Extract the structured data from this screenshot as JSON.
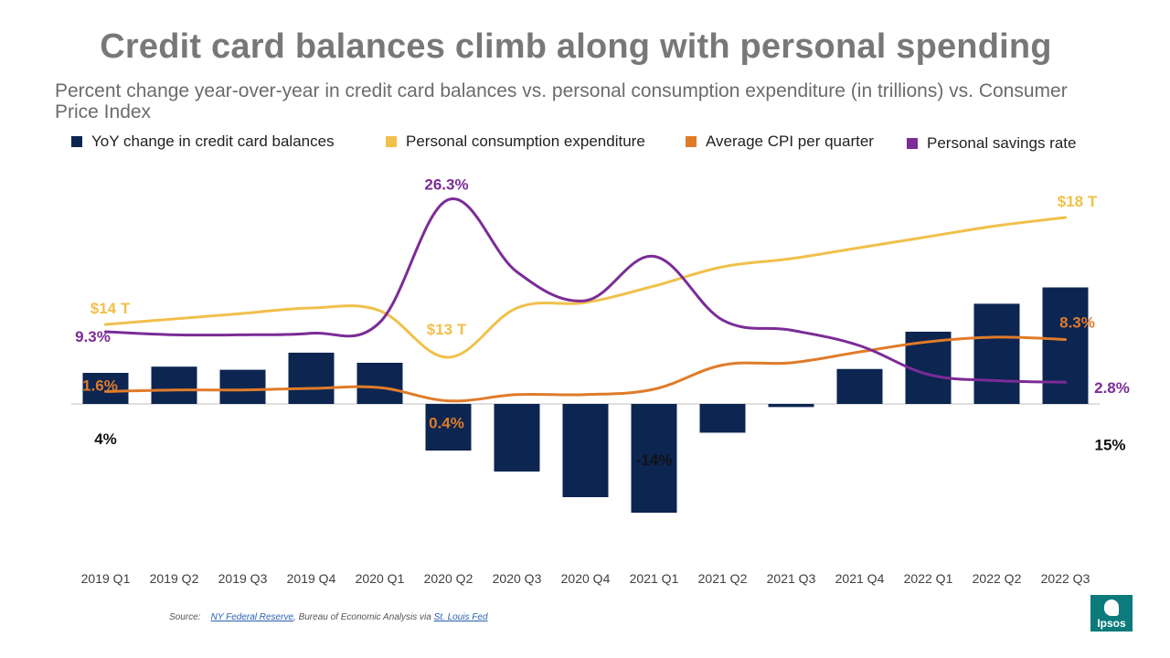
{
  "title": "Credit card balances climb along with personal spending",
  "subtitle": "Percent change year-over-year in credit card balances vs. personal consumption expenditure (in trillions) vs. Consumer Price Index",
  "source": {
    "prefix": "Source:",
    "link1": "NY Federal Reserve",
    "middle": ", Bureau of Economic Analysis via",
    "link2": "St. Louis Fed"
  },
  "logo_text": "Ipsos",
  "colors": {
    "bars": "#0c2551",
    "pce": "#f0c04a",
    "cpi": "#e07b29",
    "savings": "#7b2c97",
    "axis": "#bfbfbf"
  },
  "legend": [
    {
      "label": "YoY change in credit card balances",
      "color": "#0c2551"
    },
    {
      "label": "Personal consumption expenditure",
      "color": "#f0c04a"
    },
    {
      "label": "Average CPI per quarter",
      "color": "#e07b29"
    },
    {
      "label": "Personal savings rate",
      "color": "#7b2c97"
    }
  ],
  "chart_data": {
    "type": "bar",
    "categories": [
      "2019 Q1",
      "2019 Q2",
      "2019 Q3",
      "2019 Q4",
      "2020 Q1",
      "2020 Q2",
      "2020 Q3",
      "2020 Q4",
      "2021 Q1",
      "2021 Q2",
      "2021 Q3",
      "2021 Q4",
      "2022 Q1",
      "2022 Q2",
      "2022 Q3"
    ],
    "series": [
      {
        "name": "YoY change in credit card balances",
        "type": "bar",
        "values": [
          4,
          4.8,
          4.4,
          6.6,
          5.3,
          -6,
          -8.7,
          -12,
          -14,
          -3.7,
          -0.4,
          4.5,
          9.3,
          12.9,
          15
        ]
      },
      {
        "name": "Personal consumption expenditure",
        "type": "line",
        "values": [
          14.1,
          14.3,
          14.5,
          14.7,
          14.6,
          12.9,
          14.7,
          14.9,
          15.5,
          16.2,
          16.5,
          16.9,
          17.3,
          17.7,
          18.0
        ]
      },
      {
        "name": "Average CPI per quarter",
        "type": "line",
        "values": [
          1.6,
          1.8,
          1.8,
          2.0,
          2.1,
          0.4,
          1.2,
          1.2,
          1.9,
          5.0,
          5.3,
          6.7,
          8.0,
          8.6,
          8.3
        ]
      },
      {
        "name": "Personal savings rate",
        "type": "line",
        "values": [
          9.3,
          8.9,
          8.9,
          9.1,
          10.5,
          26.3,
          17.0,
          13.3,
          19.0,
          10.8,
          9.5,
          7.5,
          3.8,
          3.0,
          2.8
        ]
      }
    ],
    "data_labels": [
      {
        "series": "YoY change in credit card balances",
        "category": "2019 Q1",
        "text": "4%"
      },
      {
        "series": "YoY change in credit card balances",
        "category": "2021 Q1",
        "text": "-14%"
      },
      {
        "series": "YoY change in credit card balances",
        "category": "2022 Q3",
        "text": "15%"
      },
      {
        "series": "Personal consumption expenditure",
        "category": "2019 Q1",
        "text": "$14 T"
      },
      {
        "series": "Personal consumption expenditure",
        "category": "2020 Q2",
        "text": "$13 T"
      },
      {
        "series": "Personal consumption expenditure",
        "category": "2022 Q3",
        "text": "$18 T"
      },
      {
        "series": "Average CPI per quarter",
        "category": "2019 Q1",
        "text": "1.6%"
      },
      {
        "series": "Average CPI per quarter",
        "category": "2020 Q2",
        "text": "0.4%"
      },
      {
        "series": "Average CPI per quarter",
        "category": "2022 Q3",
        "text": "8.3%"
      },
      {
        "series": "Personal savings rate",
        "category": "2019 Q1",
        "text": "9.3%"
      },
      {
        "series": "Personal savings rate",
        "category": "2020 Q2",
        "text": "26.3%"
      },
      {
        "series": "Personal savings rate",
        "category": "2022 Q3",
        "text": "2.8%"
      }
    ],
    "legend_position": "top",
    "grid": false
  }
}
